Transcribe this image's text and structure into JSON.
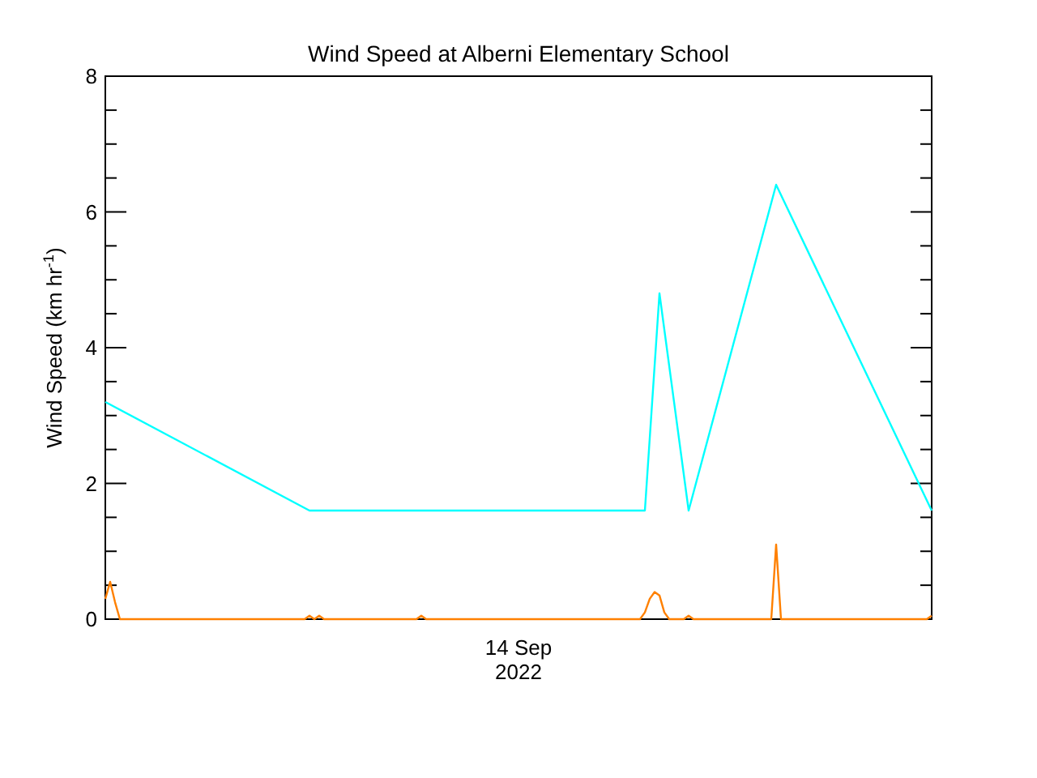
{
  "chart_data": {
    "type": "line",
    "title": "Wind Speed at Alberni Elementary School",
    "ylabel": "Wind Speed (km hr$^{-1}$)",
    "categories": [
      null,
      null,
      null,
      null,
      null,
      null,
      null,
      null,
      null,
      null,
      null,
      null,
      null,
      null,
      null,
      null,
      null,
      null,
      null,
      null,
      null,
      null,
      null,
      null,
      null,
      null,
      null,
      null,
      null,
      null,
      null,
      null,
      null,
      null,
      null,
      null,
      null,
      null,
      null,
      null,
      null,
      null,
      null,
      null,
      null,
      null,
      null,
      null,
      null,
      null,
      null,
      null,
      null,
      null,
      null,
      null,
      null,
      null,
      null,
      null,
      null,
      null,
      null,
      null,
      null,
      null,
      null,
      null,
      null,
      null,
      null,
      null,
      null,
      null,
      null,
      null,
      null,
      null,
      null,
      null,
      null,
      null,
      null,
      null,
      null,
      null,
      null,
      null,
      null,
      null,
      null,
      null,
      null,
      null,
      null,
      null,
      null,
      null,
      null,
      null,
      null,
      null,
      null,
      null,
      null,
      null,
      null,
      null,
      null,
      null,
      null,
      null,
      null,
      null,
      null,
      null,
      null,
      null,
      null,
      null,
      null,
      null,
      null,
      null,
      null,
      null,
      null,
      null,
      null,
      null,
      null,
      null,
      null,
      null,
      null,
      null,
      null,
      null,
      null,
      null,
      null,
      null,
      null,
      null,
      null,
      null,
      null,
      null,
      null,
      null,
      null,
      null,
      null,
      null,
      null,
      null,
      null,
      null,
      null,
      null,
      null,
      null,
      null,
      null,
      null,
      null,
      null,
      null,
      null,
      null,
      null
    ],
    "annotations": [
      "14 Sep\n2022"
    ],
    "ylim": [
      0,
      8
    ],
    "yticks": [
      0,
      {
        "value": 0.5,
        "label": null
      },
      {
        "value": 1,
        "label": null
      },
      {
        "value": 1.5,
        "label": null
      },
      2,
      {
        "value": 2.5,
        "label": null
      },
      {
        "value": 3,
        "label": null
      },
      {
        "value": 3.5,
        "label": null
      },
      4,
      {
        "value": 4.5,
        "label": null
      },
      {
        "value": 5,
        "label": null
      },
      {
        "value": 5.5,
        "label": null
      },
      6,
      {
        "value": 6.5,
        "label": null
      },
      {
        "value": 7,
        "label": null
      },
      {
        "value": 7.5,
        "label": null
      },
      8
    ],
    "series": [
      {
        "color": "#00ffff",
        "values": [
          3.2,
          null,
          null,
          null,
          null,
          null,
          null,
          null,
          null,
          null,
          null,
          null,
          null,
          null,
          null,
          null,
          null,
          null,
          null,
          null,
          null,
          null,
          null,
          null,
          null,
          null,
          null,
          null,
          null,
          null,
          null,
          null,
          null,
          null,
          null,
          null,
          null,
          null,
          null,
          null,
          null,
          null,
          1.6,
          null,
          null,
          null,
          null,
          null,
          null,
          null,
          null,
          null,
          null,
          null,
          null,
          null,
          null,
          null,
          null,
          null,
          null,
          null,
          null,
          null,
          null,
          null,
          null,
          null,
          null,
          null,
          null,
          null,
          null,
          null,
          null,
          null,
          null,
          null,
          null,
          null,
          null,
          null,
          null,
          null,
          null,
          null,
          null,
          null,
          null,
          null,
          null,
          null,
          null,
          null,
          null,
          null,
          null,
          null,
          null,
          null,
          null,
          null,
          null,
          null,
          null,
          null,
          null,
          null,
          null,
          null,
          null,
          1.6,
          null,
          null,
          4.8,
          null,
          null,
          null,
          null,
          null,
          1.6,
          null,
          null,
          null,
          null,
          null,
          null,
          null,
          null,
          null,
          null,
          null,
          null,
          null,
          null,
          null,
          null,
          null,
          6.4,
          null,
          null,
          null,
          null,
          null,
          null,
          null,
          null,
          null,
          null,
          null,
          null,
          null,
          null,
          null,
          null,
          null,
          null,
          null,
          null,
          null,
          null,
          null,
          null,
          null,
          null,
          null,
          null,
          null,
          null,
          null,
          1.6
        ]
      },
      {
        "color": "#ff8000",
        "values": [
          0.3,
          0.55,
          0.25,
          0,
          0,
          0,
          0,
          0,
          0,
          0,
          0,
          0,
          0,
          0,
          0,
          0,
          0,
          0,
          0,
          0,
          0,
          0,
          0,
          0,
          0,
          0,
          0,
          0,
          0,
          0,
          0,
          0,
          0,
          0,
          0,
          0,
          0,
          0,
          0,
          0,
          0,
          0,
          0.05,
          0,
          0.05,
          0,
          0,
          0,
          0,
          0,
          0,
          0,
          0,
          0,
          0,
          0,
          0,
          0,
          0,
          0,
          0,
          0,
          0,
          0,
          0,
          0.05,
          0,
          0,
          0,
          0,
          0,
          0,
          0,
          0,
          0,
          0,
          0,
          0,
          0,
          0,
          0,
          0,
          0,
          0,
          0,
          0,
          0,
          0,
          0,
          0,
          0,
          0,
          0,
          0,
          0,
          0,
          0,
          0,
          0,
          0,
          0,
          0,
          0,
          0,
          0,
          0,
          0,
          0,
          0,
          0,
          0,
          0.1,
          0.3,
          0.4,
          0.35,
          0.1,
          0,
          0,
          0,
          0,
          0.05,
          0,
          0,
          0,
          0,
          0,
          0,
          0,
          0,
          0,
          0,
          0,
          0,
          0,
          0,
          0,
          0,
          0,
          1.1,
          0,
          0,
          0,
          0,
          0,
          0,
          0,
          0,
          0,
          0,
          0,
          0,
          0,
          0,
          0,
          0,
          0,
          0,
          0,
          0,
          0,
          0,
          0,
          0,
          0,
          0,
          0,
          0,
          0,
          0,
          0,
          0.05
        ]
      }
    ]
  }
}
